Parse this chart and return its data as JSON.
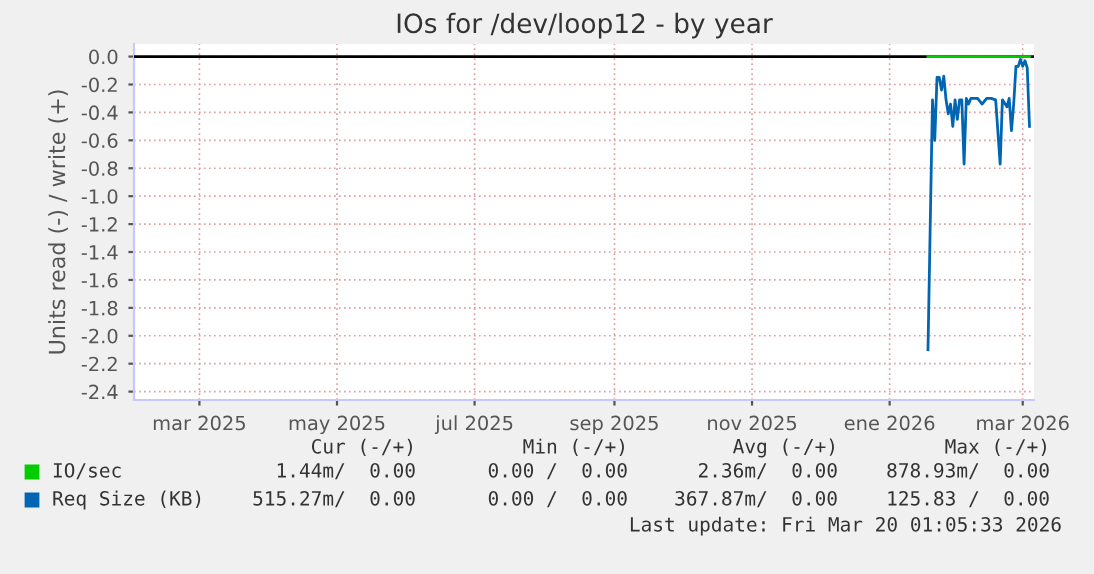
{
  "chart_data": {
    "type": "line",
    "title": "IOs for /dev/loop12 - by year",
    "ylabel": "Units read (-) / write (+)",
    "xlim": [
      "2025-02-14",
      "2026-03-20"
    ],
    "xticks": [
      {
        "value": "2025-03-15",
        "label": "mar 2025"
      },
      {
        "value": "2025-05-15",
        "label": "may 2025"
      },
      {
        "value": "2025-07-15",
        "label": "jul 2025"
      },
      {
        "value": "2025-09-15",
        "label": "sep 2025"
      },
      {
        "value": "2025-11-15",
        "label": "nov 2025"
      },
      {
        "value": "2026-01-15",
        "label": "ene 2026"
      },
      {
        "value": "2026-03-15",
        "label": "mar 2026"
      }
    ],
    "ylim": [
      -2.46,
      0.09
    ],
    "yticks": [
      {
        "value": 0,
        "label": "0.0"
      },
      {
        "value": -0.2,
        "label": "-0.2"
      },
      {
        "value": -0.4,
        "label": "-0.4"
      },
      {
        "value": -0.6,
        "label": "-0.6"
      },
      {
        "value": -0.8,
        "label": "-0.8"
      },
      {
        "value": -1.0,
        "label": "-1.0"
      },
      {
        "value": -1.2,
        "label": "-1.2"
      },
      {
        "value": -1.4,
        "label": "-1.4"
      },
      {
        "value": -1.6,
        "label": "-1.6"
      },
      {
        "value": -1.8,
        "label": "-1.8"
      },
      {
        "value": -2.0,
        "label": "-2.0"
      },
      {
        "value": -2.2,
        "label": "-2.2"
      },
      {
        "value": -2.4,
        "label": "-2.4"
      }
    ],
    "grid": true,
    "legend": "bottom",
    "ref_lines": [
      {
        "axis": "y",
        "value": 0,
        "color": "#000000"
      }
    ],
    "x": [
      "2026-02-01",
      "2026-02-03",
      "2026-02-04",
      "2026-02-05",
      "2026-02-06",
      "2026-02-07",
      "2026-02-08",
      "2026-02-09",
      "2026-02-10",
      "2026-02-11",
      "2026-02-12",
      "2026-02-13",
      "2026-02-14",
      "2026-02-15",
      "2026-02-16",
      "2026-02-17",
      "2026-02-18",
      "2026-02-19",
      "2026-02-20",
      "2026-02-23",
      "2026-02-25",
      "2026-02-27",
      "2026-03-01",
      "2026-03-03",
      "2026-03-05",
      "2026-03-06",
      "2026-03-08",
      "2026-03-09",
      "2026-03-10",
      "2026-03-11",
      "2026-03-12",
      "2026-03-13",
      "2026-03-14",
      "2026-03-15",
      "2026-03-16",
      "2026-03-17",
      "2026-03-18"
    ],
    "series": [
      {
        "name": "Req Size (KB)",
        "color": "#0066b3",
        "values": [
          -2.1,
          -0.31,
          -0.6,
          -0.15,
          -0.15,
          -0.24,
          -0.14,
          -0.31,
          -0.41,
          -0.34,
          -0.5,
          -0.31,
          -0.45,
          -0.31,
          -0.31,
          -0.77,
          -0.3,
          -0.34,
          -0.3,
          -0.3,
          -0.34,
          -0.3,
          -0.3,
          -0.31,
          -0.77,
          -0.31,
          -0.36,
          -0.3,
          -0.53,
          -0.34,
          -0.07,
          -0.07,
          -0.02,
          -0.07,
          -0.03,
          -0.08,
          -0.5
        ]
      },
      {
        "name": "IO/sec",
        "color": "#00cc00",
        "values": [
          0,
          0,
          0,
          0,
          0,
          0,
          0,
          0,
          0,
          0,
          0,
          0,
          0,
          0,
          0,
          0,
          0,
          0,
          0,
          0,
          0,
          0,
          0,
          0,
          0,
          0,
          0,
          0,
          0,
          0,
          0,
          0,
          0,
          0,
          0,
          0,
          0
        ]
      }
    ],
    "annotations": [
      "Cur (-/+)",
      "Min (-/+)",
      "Avg (-/+)",
      "Max (-/+)",
      "1.44m/  0.00",
      "0.00 /  0.00",
      "2.36m/  0.00",
      "878.93m/  0.00",
      "515.27m/  0.00",
      "0.00 /  0.00",
      "367.87m/  0.00",
      "125.83 /  0.00",
      "Last update: Fri Mar 20 01:05:33 2026"
    ]
  }
}
